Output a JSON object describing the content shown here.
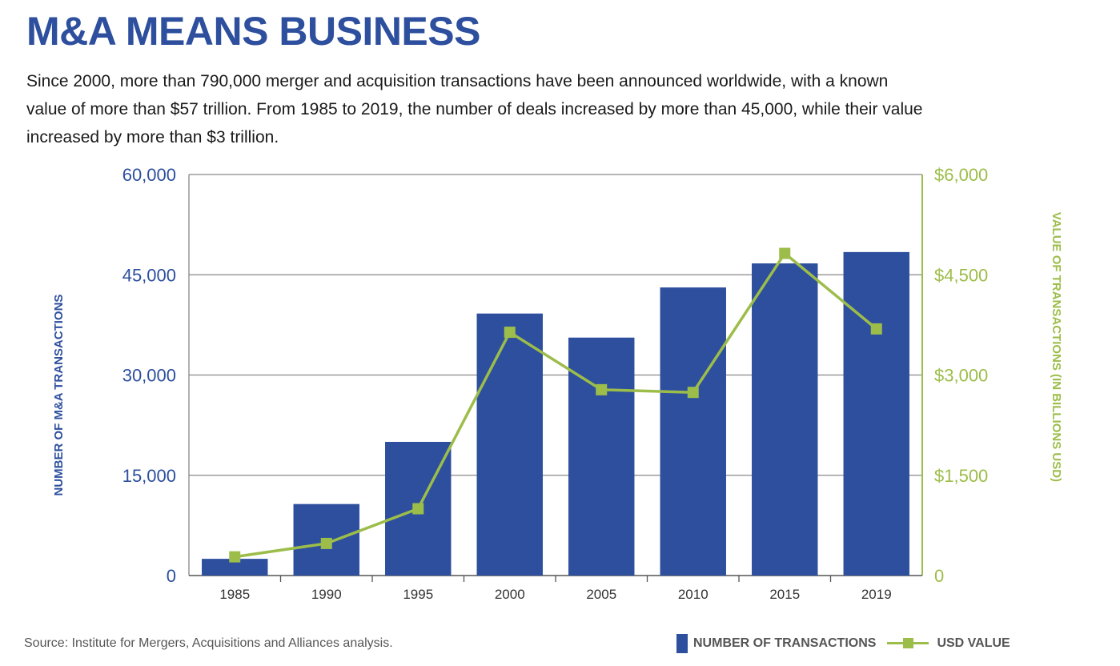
{
  "title": "M&A MEANS BUSINESS",
  "subtitle": "Since 2000, more than 790,000 merger and acquisition transactions have been announced worldwide, with a known value of more than $57 trillion. From 1985 to 2019, the number of deals increased by more than 45,000, while their value increased by more than $3 trillion.",
  "source": "Source: Institute for Mergers, Acquisitions and Alliances analysis.",
  "legend": {
    "bars_label": "NUMBER OF TRANSACTIONS",
    "line_label": "USD VALUE"
  },
  "colors": {
    "bars": "#2d4f9e",
    "line": "#9dbd4a",
    "left_axis_text": "#2d4f9e",
    "right_axis_text": "#9dbd4a",
    "grid": "#888888",
    "title": "#2d4f9e"
  },
  "chart_data": {
    "type": "bar",
    "title": "M&A MEANS BUSINESS",
    "categories": [
      "1985",
      "1990",
      "1995",
      "2000",
      "2005",
      "2010",
      "2015",
      "2019"
    ],
    "ylabel": "NUMBER OF M&A TRANSACTIONS",
    "y2label": "VALUE OF TRANSACTIONS (IN BILLIONS USD)",
    "ylim": [
      0,
      60000
    ],
    "y2lim": [
      0,
      6000
    ],
    "yticks": [
      "0",
      "15,000",
      "30,000",
      "45,000",
      "60,000"
    ],
    "y2ticks": [
      "0",
      "$1,500",
      "$3,000",
      "$4,500",
      "$6,000"
    ],
    "grid": true,
    "legend_position": "bottom-right",
    "series": [
      {
        "name": "NUMBER OF TRANSACTIONS",
        "type": "bar",
        "axis": "left",
        "values": [
          2500,
          10700,
          20000,
          39200,
          35600,
          43100,
          46700,
          48400
        ]
      },
      {
        "name": "USD VALUE",
        "type": "line",
        "axis": "right",
        "values": [
          280,
          480,
          1000,
          3640,
          2780,
          2740,
          4820,
          3690
        ]
      }
    ]
  }
}
